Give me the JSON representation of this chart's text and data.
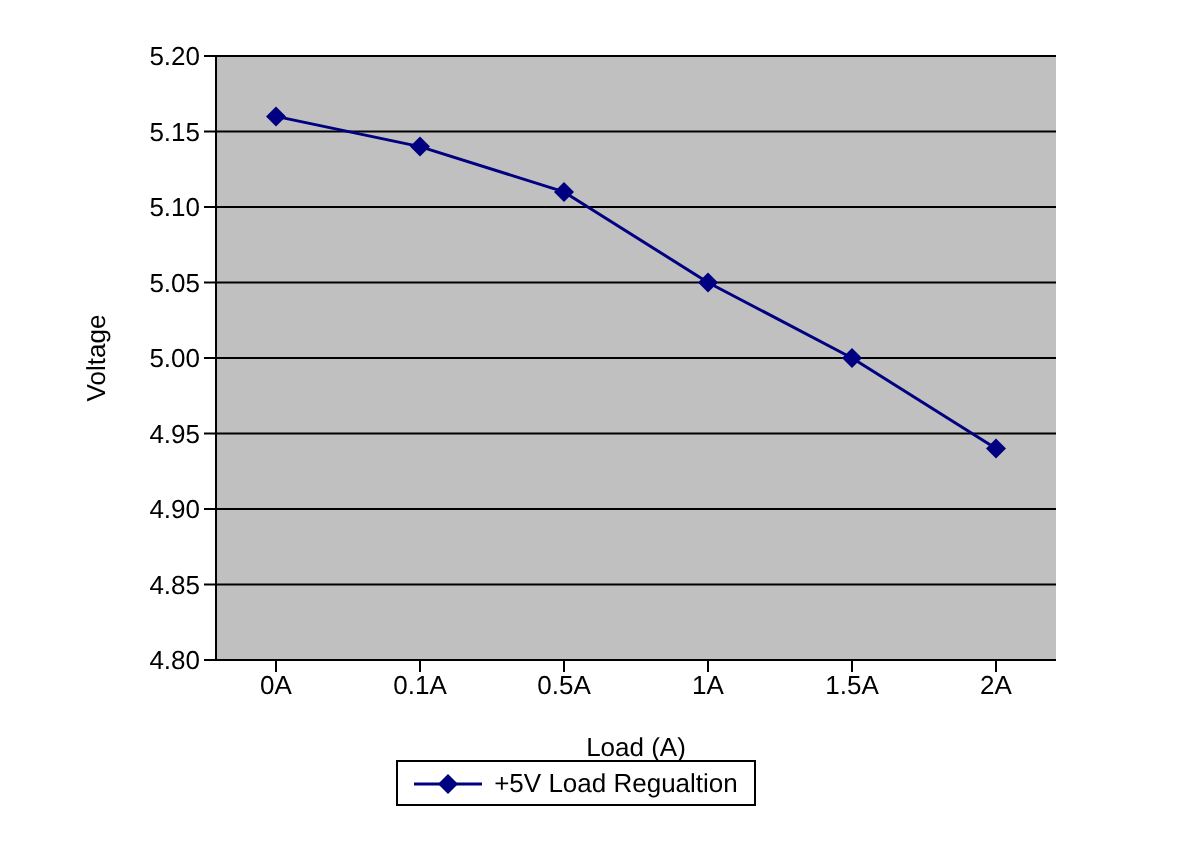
{
  "chart_data": {
    "type": "line",
    "xlabel": "Load (A)",
    "ylabel": "Voltage",
    "categories": [
      "0A",
      "0.1A",
      "0.5A",
      "1A",
      "1.5A",
      "2A"
    ],
    "series": [
      {
        "name": "+5V Load Regualtion",
        "color": "#000080",
        "values": [
          5.16,
          5.14,
          5.11,
          5.05,
          5.0,
          4.94
        ]
      }
    ],
    "ylim": [
      4.8,
      5.2
    ],
    "yticks": [
      {
        "value": 4.8,
        "label": "4.80"
      },
      {
        "value": 4.85,
        "label": "4.85"
      },
      {
        "value": 4.9,
        "label": "4.90"
      },
      {
        "value": 4.95,
        "label": "4.95"
      },
      {
        "value": 5.0,
        "label": "5.00"
      },
      {
        "value": 5.05,
        "label": "5.05"
      },
      {
        "value": 5.1,
        "label": "5.10"
      },
      {
        "value": 5.15,
        "label": "5.15"
      },
      {
        "value": 5.2,
        "label": "5.20"
      }
    ],
    "grid": "y",
    "legend": "bottom",
    "marker": "diamond",
    "line_style": "solid"
  }
}
